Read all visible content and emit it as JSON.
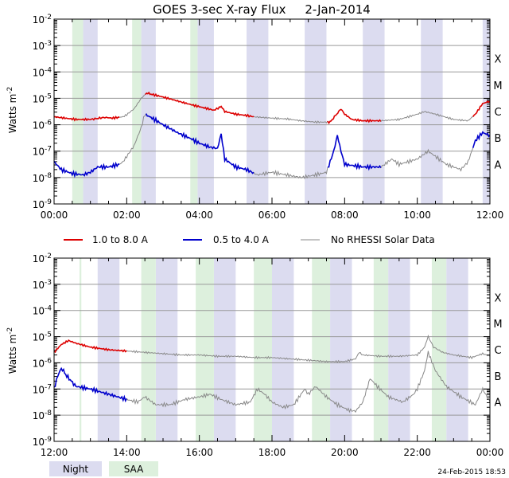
{
  "title": "GOES 3-sec X-ray Flux     2-Jan-2014",
  "ylabel_text": "Watts m",
  "ylabel_sup": "-2",
  "timestamp": "24-Feb-2015 18:53",
  "legend": [
    {
      "label": "1.0 to 8.0 A",
      "color": "#dd0000"
    },
    {
      "label": "0.5 to 4.0 A",
      "color": "#0000cc"
    },
    {
      "label": "No RHESSI Solar Data",
      "color": "#888888"
    }
  ],
  "bottom_legend": [
    {
      "label": "Night",
      "color": "#dcdcf0"
    },
    {
      "label": "SAA",
      "color": "#ddf0dd"
    }
  ],
  "colors": {
    "long": "#dd0000",
    "short": "#0000cc",
    "gap": "#888888",
    "night": "#dcdcf0",
    "saa": "#ddf0dd",
    "grid": "#999999"
  },
  "chart_data": [
    {
      "type": "line",
      "title": "GOES 3-sec X-ray Flux 2-Jan-2014 (00:00-12:00)",
      "ylabel": "Watts m^-2",
      "yscale": "log",
      "ylim": [
        1e-09,
        0.01
      ],
      "xlim": [
        0,
        12
      ],
      "x_ticks": [
        {
          "v": 0,
          "label": "00:00"
        },
        {
          "v": 2,
          "label": "02:00"
        },
        {
          "v": 4,
          "label": "04:00"
        },
        {
          "v": 6,
          "label": "06:00"
        },
        {
          "v": 8,
          "label": "08:00"
        },
        {
          "v": 10,
          "label": "10:00"
        },
        {
          "v": 12,
          "label": "12:00"
        }
      ],
      "y_ticks": [
        {
          "exp": -2,
          "base": "10",
          "sup": "-2"
        },
        {
          "exp": -3,
          "base": "10",
          "sup": "-3"
        },
        {
          "exp": -4,
          "base": "10",
          "sup": "-4"
        },
        {
          "exp": -5,
          "base": "10",
          "sup": "-5"
        },
        {
          "exp": -6,
          "base": "10",
          "sup": "-6"
        },
        {
          "exp": -7,
          "base": "10",
          "sup": "-7"
        },
        {
          "exp": -8,
          "base": "10",
          "sup": "-8"
        },
        {
          "exp": -9,
          "base": "10",
          "sup": "-9"
        }
      ],
      "class_labels": [
        {
          "exp": -4,
          "label": "X"
        },
        {
          "exp": -5,
          "label": "M"
        },
        {
          "exp": -6,
          "label": "C"
        },
        {
          "exp": -7,
          "label": "B"
        },
        {
          "exp": -8,
          "label": "A"
        }
      ],
      "night_bands": [
        [
          0.8,
          1.2
        ],
        [
          2.4,
          2.8
        ],
        [
          3.95,
          4.4
        ],
        [
          5.3,
          5.9
        ],
        [
          6.9,
          7.5
        ],
        [
          8.5,
          9.1
        ],
        [
          10.1,
          10.7
        ],
        [
          11.8,
          12.0
        ]
      ],
      "saa_bands": [
        [
          0.5,
          0.8
        ],
        [
          2.15,
          2.4
        ],
        [
          3.75,
          3.95
        ]
      ],
      "series": [
        {
          "name": "1.0 to 8.0 A",
          "points": [
            [
              0,
              -5.7
            ],
            [
              0.3,
              -5.75
            ],
            [
              0.6,
              -5.8
            ],
            [
              0.9,
              -5.8
            ],
            [
              1.0,
              -5.8
            ],
            [
              1.25,
              -5.75
            ],
            [
              1.4,
              -5.72
            ],
            [
              1.6,
              -5.75
            ],
            [
              1.9,
              -5.7
            ],
            [
              2.0,
              -5.62
            ],
            [
              2.2,
              -5.4
            ],
            [
              2.4,
              -5.0
            ],
            [
              2.55,
              -4.8
            ],
            [
              2.7,
              -4.85
            ],
            [
              3.0,
              -4.95
            ],
            [
              3.4,
              -5.1
            ],
            [
              3.8,
              -5.25
            ],
            [
              4.1,
              -5.35
            ],
            [
              4.4,
              -5.45
            ],
            [
              4.55,
              -5.35
            ],
            [
              4.6,
              -5.3
            ],
            [
              4.7,
              -5.5
            ],
            [
              5.0,
              -5.6
            ],
            [
              5.3,
              -5.65
            ],
            [
              5.5,
              -5.7
            ],
            [
              6.0,
              -5.75
            ],
            [
              6.4,
              -5.78
            ],
            [
              6.8,
              -5.85
            ],
            [
              7.2,
              -5.9
            ],
            [
              7.6,
              -5.9
            ],
            [
              7.75,
              -5.65
            ],
            [
              7.9,
              -5.4
            ],
            [
              8.0,
              -5.6
            ],
            [
              8.2,
              -5.8
            ],
            [
              8.5,
              -5.85
            ],
            [
              9.0,
              -5.85
            ],
            [
              9.5,
              -5.8
            ],
            [
              10.0,
              -5.6
            ],
            [
              10.2,
              -5.5
            ],
            [
              10.5,
              -5.6
            ],
            [
              11.0,
              -5.8
            ],
            [
              11.4,
              -5.85
            ],
            [
              11.6,
              -5.6
            ],
            [
              11.8,
              -5.2
            ],
            [
              12.0,
              -5.1
            ]
          ]
        },
        {
          "name": "0.5 to 4.0 A",
          "points": [
            [
              0,
              -7.4
            ],
            [
              0.2,
              -7.7
            ],
            [
              0.5,
              -7.85
            ],
            [
              0.8,
              -7.9
            ],
            [
              1.0,
              -7.8
            ],
            [
              1.2,
              -7.6
            ],
            [
              1.5,
              -7.6
            ],
            [
              1.8,
              -7.5
            ],
            [
              1.9,
              -7.4
            ],
            [
              2.0,
              -7.2
            ],
            [
              2.2,
              -6.8
            ],
            [
              2.4,
              -6.1
            ],
            [
              2.5,
              -5.6
            ],
            [
              2.7,
              -5.75
            ],
            [
              3.0,
              -6.0
            ],
            [
              3.4,
              -6.3
            ],
            [
              3.8,
              -6.55
            ],
            [
              4.0,
              -6.7
            ],
            [
              4.3,
              -6.85
            ],
            [
              4.5,
              -6.9
            ],
            [
              4.6,
              -6.35
            ],
            [
              4.7,
              -7.3
            ],
            [
              5.0,
              -7.6
            ],
            [
              5.3,
              -7.7
            ],
            [
              5.6,
              -7.9
            ],
            [
              6.0,
              -7.8
            ],
            [
              6.4,
              -7.9
            ],
            [
              6.8,
              -8.0
            ],
            [
              7.2,
              -7.9
            ],
            [
              7.5,
              -7.8
            ],
            [
              7.7,
              -7.0
            ],
            [
              7.8,
              -6.4
            ],
            [
              7.9,
              -7.0
            ],
            [
              8.0,
              -7.5
            ],
            [
              8.5,
              -7.6
            ],
            [
              9.0,
              -7.6
            ],
            [
              9.3,
              -7.3
            ],
            [
              9.5,
              -7.5
            ],
            [
              10.0,
              -7.3
            ],
            [
              10.3,
              -7.0
            ],
            [
              10.5,
              -7.2
            ],
            [
              10.8,
              -7.5
            ],
            [
              11.2,
              -7.7
            ],
            [
              11.4,
              -7.4
            ],
            [
              11.6,
              -6.6
            ],
            [
              11.8,
              -6.3
            ],
            [
              12.0,
              -6.4
            ]
          ]
        }
      ],
      "gray_ranges": [
        [
          1.8,
          2.5
        ],
        [
          5.5,
          7.5
        ],
        [
          9.0,
          11.5
        ]
      ]
    },
    {
      "type": "line",
      "title": "GOES 3-sec X-ray Flux 2-Jan-2014 (12:00-00:00)",
      "ylabel": "Watts m^-2",
      "yscale": "log",
      "ylim": [
        1e-09,
        0.01
      ],
      "xlim": [
        12,
        24
      ],
      "x_ticks": [
        {
          "v": 12,
          "label": "12:00"
        },
        {
          "v": 14,
          "label": "14:00"
        },
        {
          "v": 16,
          "label": "16:00"
        },
        {
          "v": 18,
          "label": "18:00"
        },
        {
          "v": 20,
          "label": "20:00"
        },
        {
          "v": 22,
          "label": "22:00"
        },
        {
          "v": 24,
          "label": "00:00"
        }
      ],
      "y_ticks": [
        {
          "exp": -2,
          "base": "10",
          "sup": "-2"
        },
        {
          "exp": -3,
          "base": "10",
          "sup": "-3"
        },
        {
          "exp": -4,
          "base": "10",
          "sup": "-4"
        },
        {
          "exp": -5,
          "base": "10",
          "sup": "-5"
        },
        {
          "exp": -6,
          "base": "10",
          "sup": "-6"
        },
        {
          "exp": -7,
          "base": "10",
          "sup": "-7"
        },
        {
          "exp": -8,
          "base": "10",
          "sup": "-8"
        },
        {
          "exp": -9,
          "base": "10",
          "sup": "-9"
        }
      ],
      "class_labels": [
        {
          "exp": -4,
          "label": "X"
        },
        {
          "exp": -5,
          "label": "M"
        },
        {
          "exp": -6,
          "label": "C"
        },
        {
          "exp": -7,
          "label": "B"
        },
        {
          "exp": -8,
          "label": "A"
        }
      ],
      "night_bands": [
        [
          13.2,
          13.8
        ],
        [
          14.8,
          15.4
        ],
        [
          16.4,
          17.0
        ],
        [
          18.0,
          18.6
        ],
        [
          19.6,
          20.2
        ],
        [
          21.2,
          21.8
        ],
        [
          22.8,
          23.4
        ]
      ],
      "saa_bands": [
        [
          12.7,
          12.75
        ],
        [
          14.4,
          14.8
        ],
        [
          15.9,
          16.4
        ],
        [
          17.5,
          18.0
        ],
        [
          19.1,
          19.6
        ],
        [
          20.8,
          21.2
        ],
        [
          22.4,
          22.8
        ]
      ],
      "series": [
        {
          "name": "1.0 to 8.0 A",
          "points": [
            [
              12.0,
              -5.6
            ],
            [
              12.2,
              -5.3
            ],
            [
              12.4,
              -5.15
            ],
            [
              12.6,
              -5.25
            ],
            [
              13.0,
              -5.4
            ],
            [
              13.5,
              -5.5
            ],
            [
              14.0,
              -5.55
            ],
            [
              14.5,
              -5.6
            ],
            [
              15.0,
              -5.65
            ],
            [
              15.5,
              -5.7
            ],
            [
              16.0,
              -5.7
            ],
            [
              16.5,
              -5.75
            ],
            [
              17.0,
              -5.75
            ],
            [
              17.5,
              -5.8
            ],
            [
              18.0,
              -5.8
            ],
            [
              18.5,
              -5.85
            ],
            [
              19.0,
              -5.9
            ],
            [
              19.5,
              -5.95
            ],
            [
              20.0,
              -5.95
            ],
            [
              20.3,
              -5.85
            ],
            [
              20.4,
              -5.6
            ],
            [
              20.5,
              -5.7
            ],
            [
              21.0,
              -5.75
            ],
            [
              21.5,
              -5.75
            ],
            [
              22.0,
              -5.7
            ],
            [
              22.2,
              -5.4
            ],
            [
              22.3,
              -5.0
            ],
            [
              22.45,
              -5.4
            ],
            [
              22.7,
              -5.6
            ],
            [
              23.0,
              -5.7
            ],
            [
              23.5,
              -5.8
            ],
            [
              23.8,
              -5.65
            ],
            [
              24.0,
              -5.75
            ]
          ]
        },
        {
          "name": "0.5 to 4.0 A",
          "points": [
            [
              12.0,
              -7.0
            ],
            [
              12.1,
              -6.5
            ],
            [
              12.2,
              -6.2
            ],
            [
              12.35,
              -6.5
            ],
            [
              12.6,
              -6.9
            ],
            [
              13.0,
              -7.0
            ],
            [
              13.5,
              -7.2
            ],
            [
              14.0,
              -7.4
            ],
            [
              14.3,
              -7.5
            ],
            [
              14.5,
              -7.3
            ],
            [
              14.8,
              -7.6
            ],
            [
              15.2,
              -7.6
            ],
            [
              15.6,
              -7.4
            ],
            [
              16.0,
              -7.3
            ],
            [
              16.3,
              -7.2
            ],
            [
              16.6,
              -7.4
            ],
            [
              17.0,
              -7.6
            ],
            [
              17.4,
              -7.5
            ],
            [
              17.6,
              -7.0
            ],
            [
              17.8,
              -7.2
            ],
            [
              18.0,
              -7.5
            ],
            [
              18.3,
              -7.7
            ],
            [
              18.6,
              -7.6
            ],
            [
              18.9,
              -7.0
            ],
            [
              19.0,
              -7.2
            ],
            [
              19.2,
              -6.9
            ],
            [
              19.5,
              -7.3
            ],
            [
              19.8,
              -7.6
            ],
            [
              20.1,
              -7.8
            ],
            [
              20.3,
              -7.85
            ],
            [
              20.5,
              -7.5
            ],
            [
              20.7,
              -6.6
            ],
            [
              20.9,
              -6.9
            ],
            [
              21.2,
              -7.3
            ],
            [
              21.6,
              -7.5
            ],
            [
              21.9,
              -7.2
            ],
            [
              22.0,
              -7.0
            ],
            [
              22.2,
              -6.3
            ],
            [
              22.3,
              -5.6
            ],
            [
              22.5,
              -6.3
            ],
            [
              22.8,
              -6.9
            ],
            [
              23.2,
              -7.3
            ],
            [
              23.6,
              -7.6
            ],
            [
              23.8,
              -7.0
            ],
            [
              24.0,
              -7.5
            ]
          ]
        }
      ],
      "gray_ranges": [
        [
          14.0,
          24.0
        ]
      ]
    }
  ]
}
